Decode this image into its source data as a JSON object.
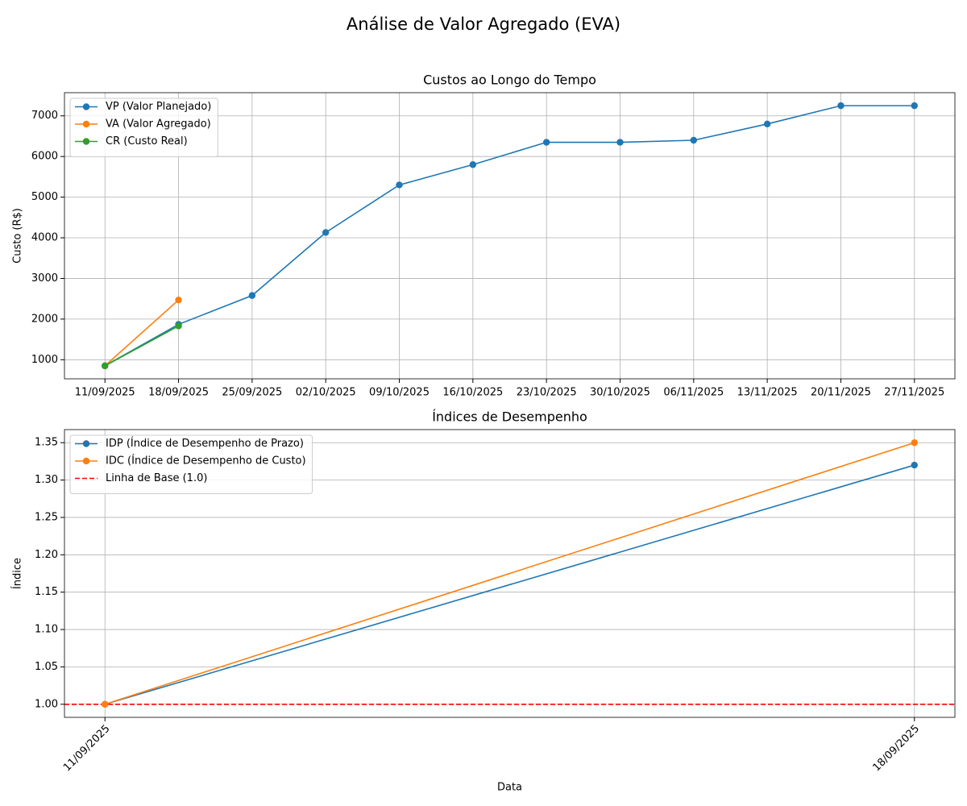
{
  "title": "Análise de Valor Agregado (EVA)",
  "chart_data": [
    {
      "type": "line",
      "title": "Custos ao Longo do Tempo",
      "ylabel": "Custo (R$)",
      "categories": [
        "11/09/2025",
        "18/09/2025",
        "25/09/2025",
        "02/10/2025",
        "09/10/2025",
        "16/10/2025",
        "23/10/2025",
        "30/10/2025",
        "06/11/2025",
        "13/11/2025",
        "20/11/2025",
        "27/11/2025"
      ],
      "series": [
        {
          "name": "VP (Valor Planejado)",
          "color": "#1f77b4",
          "values": [
            850,
            1870,
            2580,
            4130,
            5300,
            5800,
            6350,
            6350,
            6400,
            6800,
            7250,
            7250
          ]
        },
        {
          "name": "VA (Valor Agregado)",
          "color": "#ff7f0e",
          "values": [
            850,
            2470,
            null,
            null,
            null,
            null,
            null,
            null,
            null,
            null,
            null,
            null
          ]
        },
        {
          "name": "CR (Custo Real)",
          "color": "#2ca02c",
          "values": [
            850,
            1830,
            null,
            null,
            null,
            null,
            null,
            null,
            null,
            null,
            null,
            null
          ]
        }
      ],
      "ylim": [
        530,
        7570
      ],
      "yticks": [
        1000,
        2000,
        3000,
        4000,
        5000,
        6000,
        7000
      ],
      "grid": true,
      "legend": "upper left",
      "xrotate": false
    },
    {
      "type": "line",
      "title": "Índices de Desempenho",
      "ylabel": "Índice",
      "xlabel": "Data",
      "categories": [
        "11/09/2025",
        "18/09/2025"
      ],
      "series": [
        {
          "name": "IDP (Índice de Desempenho de Prazo)",
          "color": "#1f77b4",
          "values": [
            1.0,
            1.32
          ]
        },
        {
          "name": "IDC (Índice de Desempenho de Custo)",
          "color": "#ff7f0e",
          "values": [
            1.0,
            1.35
          ]
        }
      ],
      "baseline": {
        "name": "Linha de Base (1.0)",
        "value": 1.0,
        "color": "#ff0000"
      },
      "ylim": [
        0.9825,
        1.3675
      ],
      "yticks": [
        {
          "value": 1.0,
          "label": "1.00"
        },
        {
          "value": 1.05,
          "label": "1.05"
        },
        {
          "value": 1.1,
          "label": "1.10"
        },
        {
          "value": 1.15,
          "label": "1.15"
        },
        {
          "value": 1.2,
          "label": "1.20"
        },
        {
          "value": 1.25,
          "label": "1.25"
        },
        {
          "value": 1.3,
          "label": "1.30"
        },
        {
          "value": 1.35,
          "label": "1.35"
        }
      ],
      "grid": true,
      "legend": "upper left",
      "xrotate": true
    }
  ]
}
